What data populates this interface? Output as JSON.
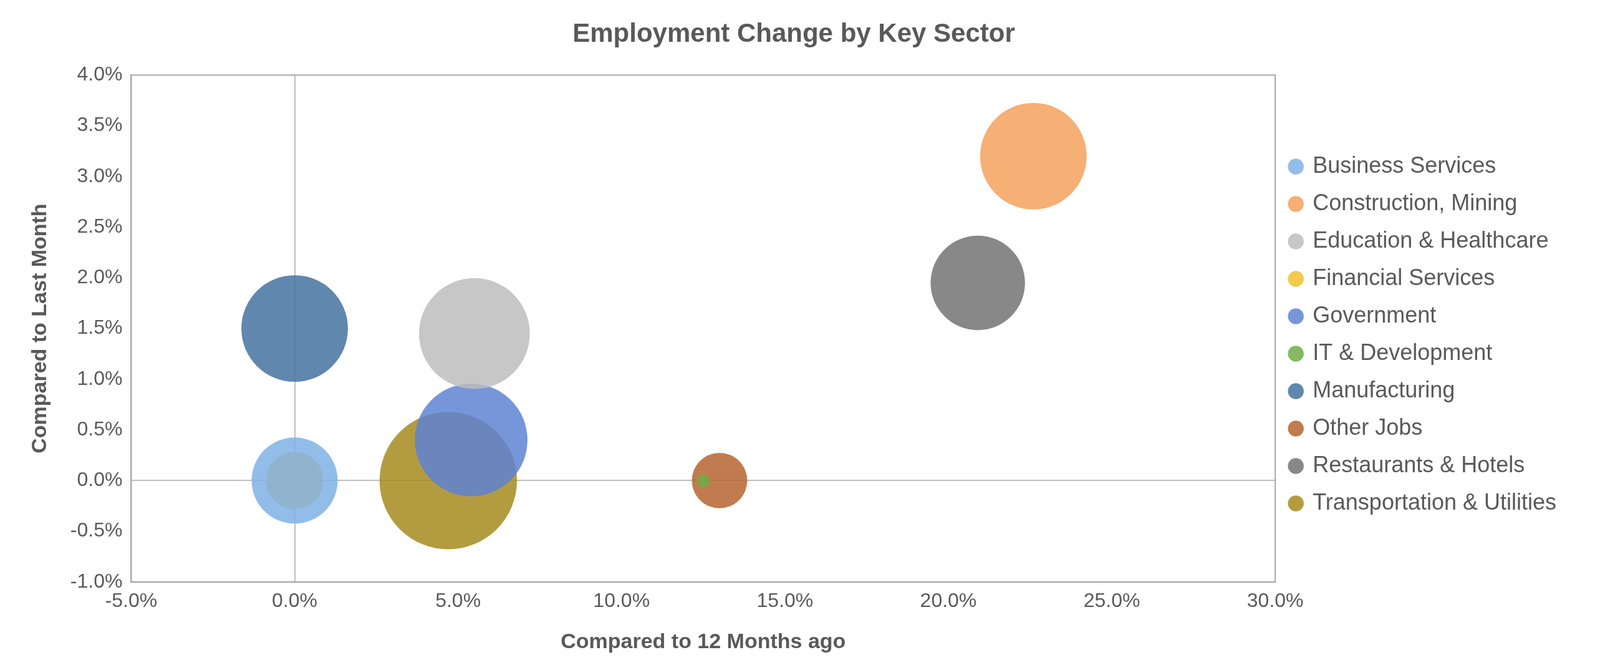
{
  "chart_data": {
    "type": "bubble",
    "title": "Employment Change by Key Sector",
    "x_label": "Compared to 12 Months ago",
    "y_label": "Compared to Last Month",
    "xlim": [
      -5,
      30
    ],
    "xticks": [
      {
        "value": -5,
        "label": "-5.0%"
      },
      {
        "value": 0,
        "label": "0.0%"
      },
      {
        "value": 5,
        "label": "5.0%"
      },
      {
        "value": 10,
        "label": "10.0%"
      },
      {
        "value": 15,
        "label": "15.0%"
      },
      {
        "value": 20,
        "label": "20.0%"
      },
      {
        "value": 25,
        "label": "25.0%"
      },
      {
        "value": 30,
        "label": "30.0%"
      }
    ],
    "ylim": [
      -1,
      4
    ],
    "yticks": [
      {
        "value": -1,
        "label": "-1.0%"
      },
      {
        "value": -0.5,
        "label": "-0.5%"
      },
      {
        "value": 0,
        "label": "0.0%"
      },
      {
        "value": 0.5,
        "label": "0.5%"
      },
      {
        "value": 1,
        "label": "1.0%"
      },
      {
        "value": 1.5,
        "label": "1.5%"
      },
      {
        "value": 2,
        "label": "2.0%"
      },
      {
        "value": 2.5,
        "label": "2.5%"
      },
      {
        "value": 3,
        "label": "3.0%"
      },
      {
        "value": 3.5,
        "label": "3.5%"
      },
      {
        "value": 4,
        "label": "4.0%"
      }
    ],
    "grid": false,
    "legend": "right",
    "series": [
      {
        "name": "Business Services",
        "color": "#7fb2e5",
        "x": [
          0.0
        ],
        "y": [
          0.0
        ],
        "size": [
          176
        ]
      },
      {
        "name": "Construction, Mining",
        "color": "#f4a15d",
        "x": [
          22.6
        ],
        "y": [
          3.2
        ],
        "size": [
          270
        ]
      },
      {
        "name": "Education & Healthcare",
        "color": "#bdbdbd",
        "x": [
          5.5
        ],
        "y": [
          1.45
        ],
        "size": [
          292
        ]
      },
      {
        "name": "Financial Services",
        "color": "#f2c12e",
        "x": [
          0.0
        ],
        "y": [
          0.0
        ],
        "size": [
          78
        ]
      },
      {
        "name": "Government",
        "color": "#5f84d4",
        "x": [
          5.4
        ],
        "y": [
          0.4
        ],
        "size": [
          302
        ]
      },
      {
        "name": "IT & Development",
        "color": "#70ad47",
        "x": [
          12.5
        ],
        "y": [
          0.0
        ],
        "size": [
          4
        ]
      },
      {
        "name": "Manufacturing",
        "color": "#44729f",
        "x": [
          0.0
        ],
        "y": [
          1.5
        ],
        "size": [
          270
        ]
      },
      {
        "name": "Other Jobs",
        "color": "#b5652f",
        "x": [
          13.0
        ],
        "y": [
          0.0
        ],
        "size": [
          73
        ]
      },
      {
        "name": "Restaurants & Hotels",
        "color": "#737373",
        "x": [
          20.9
        ],
        "y": [
          1.95
        ],
        "size": [
          212
        ]
      },
      {
        "name": "Transportation & Utilities",
        "color": "#a68b1e",
        "x": [
          4.7
        ],
        "y": [
          0.0
        ],
        "size": [
          449
        ]
      }
    ]
  }
}
